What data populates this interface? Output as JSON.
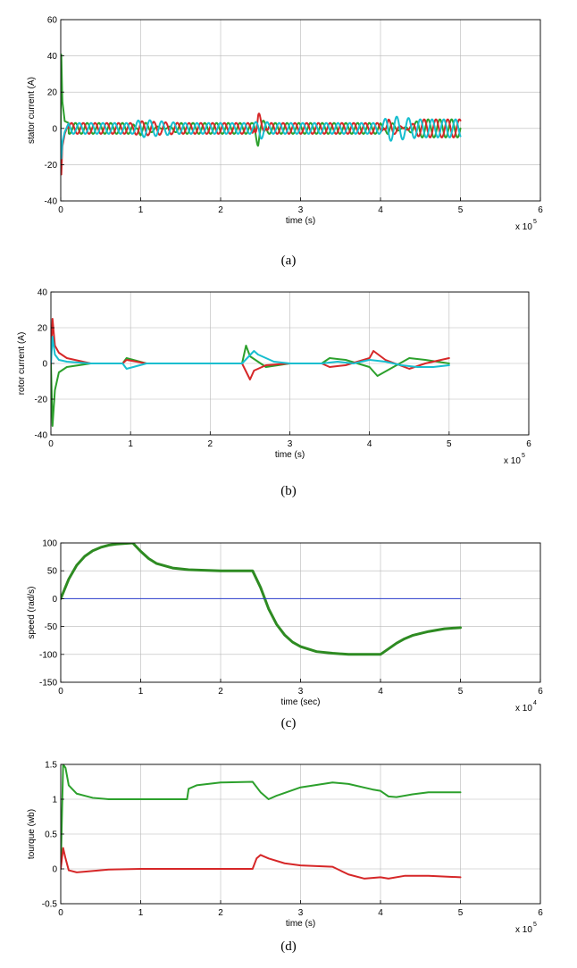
{
  "chart_data": [
    {
      "type": "line",
      "caption": "(a)",
      "xlabel": "time (s)",
      "ylabel": "stator current (A)",
      "xlim": [
        0,
        6
      ],
      "ylim": [
        -40,
        60
      ],
      "xticks": [
        0,
        1,
        2,
        3,
        4,
        5,
        6
      ],
      "yticks": [
        -40,
        -20,
        0,
        20,
        40,
        60
      ],
      "x_multiplier": "x 10",
      "x_multiplier_exp": "5",
      "grid": true,
      "series": [
        {
          "color": "#2ca02c",
          "x": [
            0,
            0.005,
            0.02,
            0.05,
            0.1,
            0.9,
            1.0,
            1.5,
            2.4,
            2.47,
            2.5,
            2.6,
            2.8,
            4.0,
            4.1,
            4.5,
            5.0
          ],
          "y": [
            0,
            45,
            15,
            4,
            3,
            3,
            -4,
            3,
            3,
            10,
            5,
            3,
            3,
            3,
            -4,
            5,
            5
          ],
          "style": "oscillation",
          "cycles": 34
        },
        {
          "color": "#d62728",
          "x": [
            0,
            0.005,
            0.02,
            0.05,
            0.1,
            0.9,
            1.0,
            1.5,
            2.4,
            2.47,
            2.5,
            2.6,
            2.8,
            4.0,
            4.1,
            4.5,
            5.0
          ],
          "y": [
            0,
            -28,
            -10,
            -3,
            3,
            3,
            4,
            3,
            3,
            -10,
            -6,
            3,
            3,
            3,
            -5,
            5,
            5
          ],
          "style": "oscillation",
          "cycles": 34
        },
        {
          "color": "#17becf",
          "x": [
            0,
            0.005,
            0.02,
            0.05,
            0.1,
            0.9,
            1.0,
            1.5,
            2.4,
            2.47,
            2.5,
            2.6,
            2.8,
            4.0,
            4.1,
            4.5,
            5.0
          ],
          "y": [
            0,
            -18,
            -8,
            -2,
            3,
            3,
            5,
            3,
            3,
            4,
            6,
            3,
            3,
            3,
            7,
            5,
            5
          ],
          "style": "oscillation",
          "cycles": 34
        }
      ]
    },
    {
      "type": "line",
      "caption": "(b)",
      "xlabel": "time (s)",
      "ylabel": "rotor current (A)",
      "xlim": [
        0,
        6
      ],
      "ylim": [
        -40,
        40
      ],
      "xticks": [
        0,
        1,
        2,
        3,
        4,
        5,
        6
      ],
      "yticks": [
        -40,
        -20,
        0,
        20,
        40
      ],
      "x_multiplier": "x 10",
      "x_multiplier_exp": "5",
      "grid": true,
      "series": [
        {
          "color": "#2ca02c",
          "x": [
            0,
            0.02,
            0.05,
            0.1,
            0.2,
            0.5,
            0.9,
            0.95,
            1.2,
            2.4,
            2.45,
            2.5,
            2.7,
            3.0,
            3.4,
            3.5,
            3.7,
            4.0,
            4.1,
            4.3,
            4.5,
            4.7,
            5.0
          ],
          "y": [
            0,
            -35,
            -15,
            -5,
            -2,
            0,
            0,
            3,
            0,
            0,
            10,
            4,
            -2,
            0,
            0,
            3,
            2,
            -2,
            -7,
            -2,
            3,
            2,
            0
          ]
        },
        {
          "color": "#d62728",
          "x": [
            0,
            0.02,
            0.05,
            0.1,
            0.2,
            0.5,
            0.9,
            0.95,
            1.2,
            2.4,
            2.5,
            2.55,
            2.7,
            3.0,
            3.4,
            3.5,
            3.7,
            4.0,
            4.05,
            4.2,
            4.5,
            4.7,
            5.0
          ],
          "y": [
            0,
            25,
            10,
            6,
            3,
            0,
            0,
            2,
            0,
            0,
            -9,
            -4,
            -1,
            0,
            0,
            -2,
            -1,
            3,
            7,
            2,
            -3,
            0,
            3
          ]
        },
        {
          "color": "#17becf",
          "x": [
            0,
            0.02,
            0.05,
            0.1,
            0.2,
            0.5,
            0.9,
            0.95,
            1.2,
            2.4,
            2.55,
            2.6,
            2.8,
            3.0,
            3.4,
            3.6,
            3.8,
            4.0,
            4.2,
            4.4,
            4.6,
            4.8,
            5.0
          ],
          "y": [
            0,
            15,
            5,
            2,
            1,
            0,
            0,
            -3,
            0,
            0,
            7,
            5,
            1,
            0,
            0,
            1,
            0,
            2,
            1,
            -1,
            -2,
            -2,
            -1
          ]
        }
      ]
    },
    {
      "type": "line",
      "caption": "(c)",
      "xlabel": "time (sec)",
      "ylabel": "speed (rad/s)",
      "xlim": [
        0,
        6
      ],
      "ylim": [
        -150,
        100
      ],
      "xticks": [
        0,
        1,
        2,
        3,
        4,
        5,
        6
      ],
      "yticks": [
        -150,
        -100,
        -50,
        0,
        50,
        100
      ],
      "x_multiplier": "x 10",
      "x_multiplier_exp": "4",
      "grid": true,
      "series": [
        {
          "color": "#2e8b22",
          "width": 3,
          "x": [
            0,
            0.1,
            0.2,
            0.3,
            0.4,
            0.5,
            0.6,
            0.7,
            0.8,
            0.9,
            1.0,
            1.1,
            1.2,
            1.4,
            1.6,
            1.8,
            2.0,
            2.2,
            2.4,
            2.5,
            2.6,
            2.7,
            2.8,
            2.9,
            3.0,
            3.2,
            3.4,
            3.6,
            3.8,
            4.0,
            4.1,
            4.2,
            4.3,
            4.4,
            4.6,
            4.8,
            5.0
          ],
          "y": [
            0,
            35,
            60,
            76,
            86,
            92,
            96,
            98,
            99,
            100,
            85,
            72,
            63,
            55,
            52,
            51,
            50,
            50,
            50,
            20,
            -18,
            -46,
            -65,
            -78,
            -86,
            -95,
            -98,
            -100,
            -100,
            -100,
            -90,
            -80,
            -72,
            -66,
            -59,
            -54,
            -52
          ]
        },
        {
          "color": "#2b3fcf",
          "width": 1,
          "x": [
            0,
            5.0
          ],
          "y": [
            0,
            0
          ]
        }
      ]
    },
    {
      "type": "line",
      "caption": "(d)",
      "xlabel": "time (s)",
      "ylabel": "tourque (wb)",
      "xlim": [
        0,
        6
      ],
      "ylim": [
        -0.5,
        1.5
      ],
      "xticks": [
        0,
        1,
        2,
        3,
        4,
        5,
        6
      ],
      "yticks": [
        -0.5,
        0,
        0.5,
        1,
        1.5
      ],
      "x_multiplier": "x 10",
      "x_multiplier_exp": "5",
      "grid": true,
      "series": [
        {
          "color": "#2ca02c",
          "x": [
            0,
            0.03,
            0.06,
            0.1,
            0.2,
            0.4,
            0.6,
            0.8,
            1.0,
            1.5,
            1.58,
            1.6,
            1.7,
            2.0,
            2.4,
            2.5,
            2.6,
            2.7,
            3.0,
            3.4,
            3.6,
            3.9,
            4.0,
            4.1,
            4.2,
            4.4,
            4.6,
            5.0
          ],
          "y": [
            0,
            1.5,
            1.45,
            1.2,
            1.08,
            1.02,
            1.0,
            1.0,
            1.0,
            1.0,
            1.0,
            1.15,
            1.2,
            1.24,
            1.25,
            1.1,
            1.0,
            1.05,
            1.17,
            1.24,
            1.22,
            1.14,
            1.12,
            1.04,
            1.03,
            1.07,
            1.1,
            1.1
          ]
        },
        {
          "color": "#d62728",
          "x": [
            0,
            0.03,
            0.06,
            0.1,
            0.2,
            0.3,
            0.6,
            1.0,
            1.5,
            2.0,
            2.4,
            2.45,
            2.5,
            2.6,
            2.8,
            3.0,
            3.4,
            3.6,
            3.8,
            4.0,
            4.1,
            4.3,
            4.6,
            5.0
          ],
          "y": [
            0,
            0.3,
            0.15,
            -0.02,
            -0.05,
            -0.04,
            -0.01,
            0,
            0,
            0,
            0,
            0.15,
            0.2,
            0.15,
            0.08,
            0.05,
            0.03,
            -0.08,
            -0.14,
            -0.12,
            -0.14,
            -0.1,
            -0.1,
            -0.12
          ]
        }
      ]
    }
  ]
}
